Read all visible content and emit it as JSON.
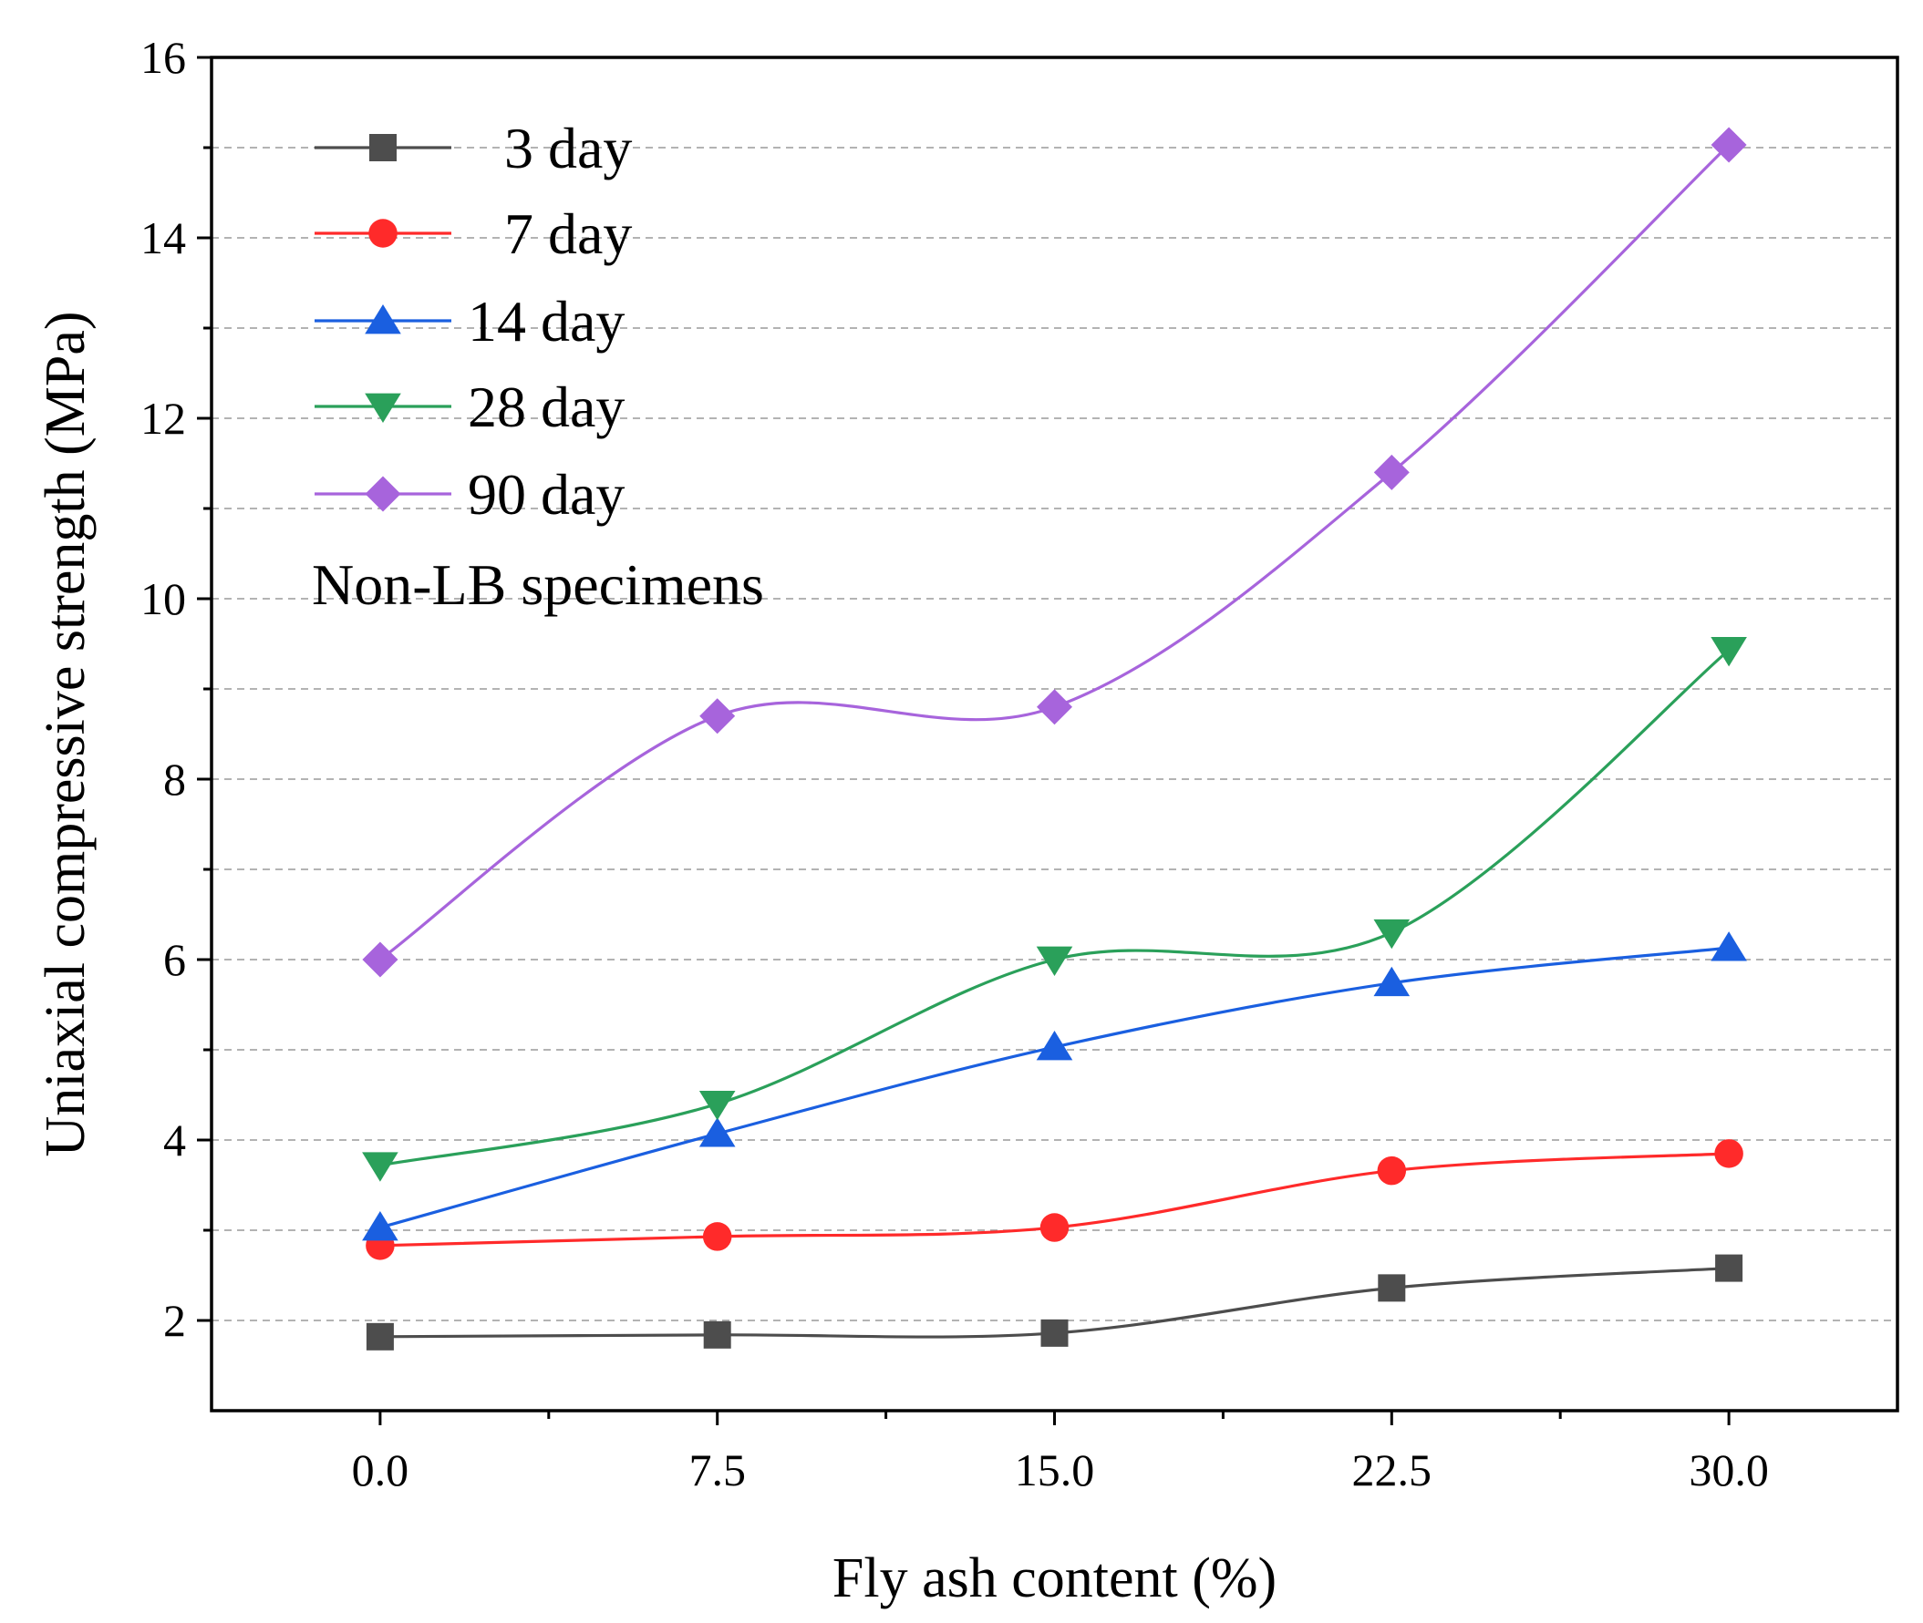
{
  "chart_data": {
    "type": "line",
    "x": [
      0.0,
      7.5,
      15.0,
      22.5,
      30.0
    ],
    "x_tick_labels": [
      "0.0",
      "7.5",
      "15.0",
      "22.5",
      "30.0"
    ],
    "y_tick_labels": [
      "2",
      "4",
      "6",
      "8",
      "10",
      "12",
      "14",
      "16"
    ],
    "xlabel": "Fly ash content (%)",
    "ylabel": "Uniaxial compressive strength (MPa)",
    "xlim": [
      -3.75,
      33.75
    ],
    "ylim": [
      1.0,
      16.0
    ],
    "grid": "horizontal dashed",
    "legend_position": "top-left",
    "annotation": "Non-LB specimens",
    "series": [
      {
        "name": "3 day",
        "values": [
          1.82,
          1.84,
          1.86,
          2.36,
          2.58
        ],
        "color": "#4d4d4d",
        "marker": "square"
      },
      {
        "name": "7 day",
        "values": [
          2.83,
          2.93,
          3.03,
          3.66,
          3.85
        ],
        "color": "#ff2a2a",
        "marker": "circle"
      },
      {
        "name": "14 day",
        "values": [
          3.03,
          4.07,
          5.03,
          5.74,
          6.13
        ],
        "color": "#1a5fe0",
        "marker": "triangle-up"
      },
      {
        "name": "28 day",
        "values": [
          3.72,
          4.4,
          6.0,
          6.3,
          9.43
        ],
        "color": "#2aa05a",
        "marker": "triangle-down"
      },
      {
        "name": "90 day",
        "values": [
          6.0,
          8.7,
          8.8,
          11.4,
          15.03
        ],
        "color": "#a764dc",
        "marker": "diamond"
      }
    ]
  }
}
